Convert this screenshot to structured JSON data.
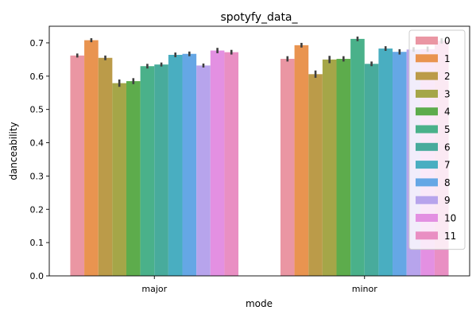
{
  "chart_data": {
    "type": "bar",
    "title": "spotyfy_data_",
    "xlabel": "mode",
    "ylabel": "danceability",
    "categories": [
      "major",
      "minor"
    ],
    "ylim": [
      0,
      0.75
    ],
    "yticks": [
      "0.0",
      "0.1",
      "0.2",
      "0.3",
      "0.4",
      "0.5",
      "0.6",
      "0.7"
    ],
    "grid": false,
    "legend_position": "top-right",
    "series": [
      {
        "name": "0",
        "color": "#ea96a3",
        "values": [
          0.662,
          0.652
        ],
        "err": [
          0.006,
          0.008
        ]
      },
      {
        "name": "1",
        "color": "#e99450",
        "values": [
          0.708,
          0.693
        ],
        "err": [
          0.006,
          0.007
        ]
      },
      {
        "name": "2",
        "color": "#bb9b49",
        "values": [
          0.655,
          0.606
        ],
        "err": [
          0.007,
          0.011
        ]
      },
      {
        "name": "3",
        "color": "#a5a648",
        "values": [
          0.579,
          0.65
        ],
        "err": [
          0.011,
          0.011
        ]
      },
      {
        "name": "4",
        "color": "#5dac4c",
        "values": [
          0.585,
          0.652
        ],
        "err": [
          0.009,
          0.008
        ]
      },
      {
        "name": "5",
        "color": "#4ab18a",
        "values": [
          0.63,
          0.712
        ],
        "err": [
          0.007,
          0.007
        ]
      },
      {
        "name": "6",
        "color": "#48ab9c",
        "values": [
          0.635,
          0.637
        ],
        "err": [
          0.006,
          0.007
        ]
      },
      {
        "name": "7",
        "color": "#49aec1",
        "values": [
          0.664,
          0.683
        ],
        "err": [
          0.007,
          0.007
        ]
      },
      {
        "name": "8",
        "color": "#65a7e5",
        "values": [
          0.667,
          0.673
        ],
        "err": [
          0.007,
          0.008
        ]
      },
      {
        "name": "9",
        "color": "#b7a4ec",
        "values": [
          0.632,
          0.68
        ],
        "err": [
          0.006,
          0.007
        ]
      },
      {
        "name": "10",
        "color": "#e390e2",
        "values": [
          0.677,
          0.681
        ],
        "err": [
          0.008,
          0.008
        ]
      },
      {
        "name": "11",
        "color": "#e98fc3",
        "values": [
          0.672,
          0.706
        ],
        "err": [
          0.007,
          0.008
        ]
      }
    ]
  }
}
